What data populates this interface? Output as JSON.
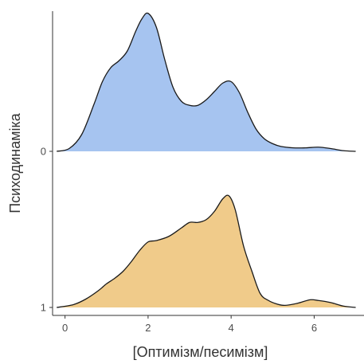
{
  "chart_data": {
    "type": "area",
    "subtype": "ridgeline-density",
    "title": "",
    "xlabel": "[Оптимізм/песимізм]",
    "ylabel": "Психодинаміка",
    "xlim": [
      -0.3,
      7.2
    ],
    "x_ticks": [
      0,
      2,
      4,
      6
    ],
    "y_categories": [
      "0",
      "1"
    ],
    "grid": false,
    "legend": "none",
    "colors": {
      "0": "#a6c4f0",
      "1": "#f0cb8a",
      "outline": "#1a1a1a",
      "axis": "#333333"
    },
    "series": [
      {
        "category": "0",
        "x": [
          -0.2,
          0.1,
          0.4,
          0.7,
          0.9,
          1.1,
          1.3,
          1.5,
          1.7,
          1.85,
          2.0,
          2.2,
          2.4,
          2.6,
          2.8,
          3.0,
          3.2,
          3.4,
          3.6,
          3.8,
          4.0,
          4.2,
          4.4,
          4.6,
          4.8,
          5.0,
          5.2,
          5.5,
          5.8,
          6.1,
          6.4,
          6.7,
          7.0
        ],
        "density": [
          0.0,
          0.02,
          0.12,
          0.34,
          0.5,
          0.6,
          0.65,
          0.72,
          0.86,
          0.95,
          0.99,
          0.89,
          0.66,
          0.46,
          0.36,
          0.33,
          0.33,
          0.37,
          0.43,
          0.49,
          0.5,
          0.42,
          0.28,
          0.16,
          0.09,
          0.055,
          0.035,
          0.025,
          0.025,
          0.03,
          0.02,
          0.005,
          0.0
        ]
      },
      {
        "category": "1",
        "x": [
          -0.2,
          0.2,
          0.5,
          0.8,
          1.0,
          1.2,
          1.4,
          1.6,
          1.8,
          2.0,
          2.2,
          2.5,
          2.8,
          3.0,
          3.2,
          3.4,
          3.6,
          3.8,
          3.95,
          4.1,
          4.3,
          4.5,
          4.7,
          4.9,
          5.1,
          5.3,
          5.6,
          5.9,
          6.1,
          6.4,
          6.7,
          7.0
        ],
        "density": [
          0.0,
          0.02,
          0.06,
          0.12,
          0.17,
          0.21,
          0.26,
          0.33,
          0.41,
          0.47,
          0.48,
          0.51,
          0.57,
          0.61,
          0.61,
          0.63,
          0.69,
          0.78,
          0.8,
          0.7,
          0.44,
          0.26,
          0.1,
          0.05,
          0.025,
          0.015,
          0.03,
          0.055,
          0.05,
          0.035,
          0.01,
          0.0
        ]
      }
    ]
  }
}
